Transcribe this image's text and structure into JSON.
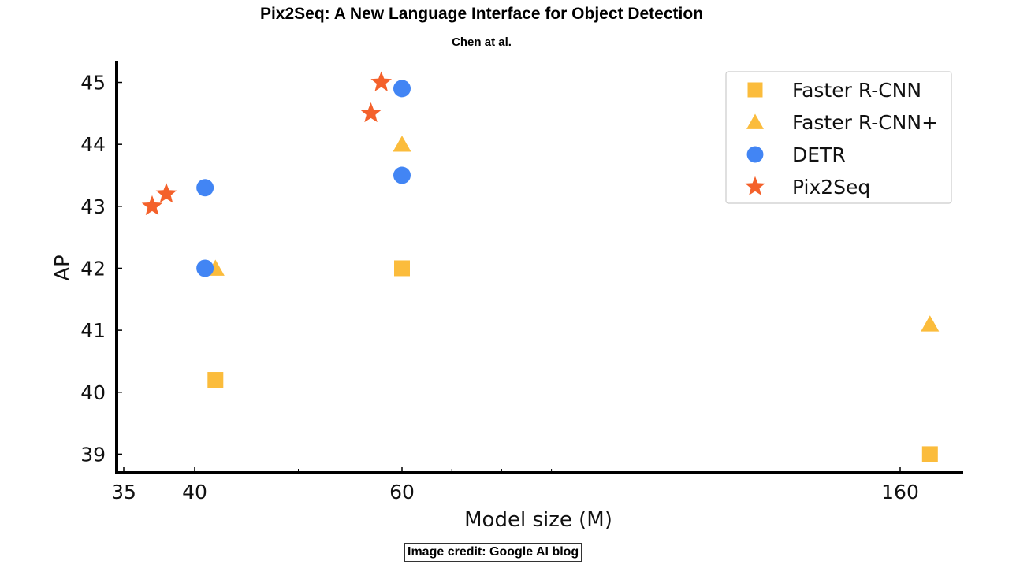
{
  "header": {
    "title": "Pix2Seq: A New Language Interface for Object Detection",
    "subtitle": "Chen at al."
  },
  "footer": {
    "credit": "Image credit: Google AI blog"
  },
  "chart_data": {
    "type": "scatter",
    "xlabel": "Model size (M)",
    "ylabel": "AP",
    "x_scale": "piecewise (nonlinear)",
    "xticks": [
      35,
      40,
      60,
      160
    ],
    "yticks": [
      39,
      40,
      41,
      42,
      43,
      44,
      45
    ],
    "ylim": [
      38.7,
      45.35
    ],
    "grid": false,
    "legend_position": "top-right",
    "series": [
      {
        "name": "Faster R-CNN",
        "marker": "square",
        "color": "#FBBC3C",
        "points": [
          {
            "x": 42,
            "y": 40.2
          },
          {
            "x": 60,
            "y": 42.0
          },
          {
            "x": 166,
            "y": 39.0
          }
        ]
      },
      {
        "name": "Faster R-CNN+",
        "marker": "triangle",
        "color": "#FBBC3C",
        "points": [
          {
            "x": 42,
            "y": 42.0
          },
          {
            "x": 60,
            "y": 44.0
          },
          {
            "x": 166,
            "y": 41.1
          }
        ]
      },
      {
        "name": "DETR",
        "marker": "circle",
        "color": "#4285F4",
        "points": [
          {
            "x": 41,
            "y": 42.0
          },
          {
            "x": 41,
            "y": 43.3
          },
          {
            "x": 60,
            "y": 43.5
          },
          {
            "x": 60,
            "y": 44.9
          }
        ]
      },
      {
        "name": "Pix2Seq",
        "marker": "star",
        "color": "#F4612B",
        "points": [
          {
            "x": 37,
            "y": 43.0
          },
          {
            "x": 38,
            "y": 43.2
          },
          {
            "x": 57,
            "y": 44.5
          },
          {
            "x": 58,
            "y": 45.0
          }
        ]
      }
    ]
  }
}
